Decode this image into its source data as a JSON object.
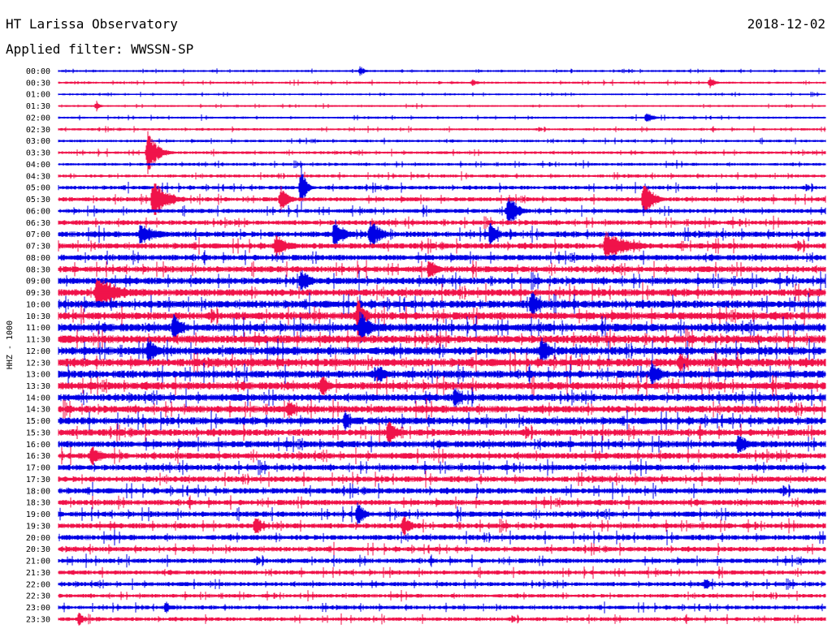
{
  "header": {
    "title": "HT Larissa Observatory",
    "date": "2018-12-02",
    "filter_prefix": "Applied filter:",
    "filter_name": "WWSSN-SP"
  },
  "colors": {
    "blue": "#0000e6",
    "red": "#f0134a",
    "text": "#000000",
    "background": "#ffffff"
  },
  "chart_data": {
    "type": "line",
    "ylabel": "HHZ - 1000",
    "xlabel": "",
    "time_labels": [
      "00:00",
      "00:30",
      "01:00",
      "01:30",
      "02:00",
      "02:30",
      "03:00",
      "03:30",
      "04:00",
      "04:30",
      "05:00",
      "05:30",
      "06:00",
      "06:30",
      "07:00",
      "07:30",
      "08:00",
      "08:30",
      "09:00",
      "09:30",
      "10:00",
      "10:30",
      "11:00",
      "11:30",
      "12:00",
      "12:30",
      "13:00",
      "13:30",
      "14:00",
      "14:30",
      "15:00",
      "15:30",
      "16:00",
      "16:30",
      "17:00",
      "17:30",
      "18:00",
      "18:30",
      "19:00",
      "19:30",
      "20:00",
      "20:30",
      "21:00",
      "21:30",
      "22:00",
      "22:30",
      "23:00",
      "23:30"
    ],
    "trace_colors": [
      "blue",
      "red"
    ],
    "noise_level": [
      0.9,
      0.9,
      0.8,
      0.8,
      0.9,
      1.0,
      1.1,
      1.2,
      1.2,
      1.3,
      1.6,
      1.8,
      1.8,
      2.0,
      2.4,
      2.4,
      2.4,
      2.6,
      2.8,
      3.0,
      3.2,
      3.2,
      3.4,
      3.4,
      3.4,
      3.4,
      3.2,
      3.2,
      3.0,
      3.0,
      3.0,
      2.8,
      2.8,
      2.6,
      2.4,
      2.4,
      2.4,
      2.3,
      2.3,
      2.2,
      2.2,
      2.0,
      2.0,
      1.8,
      1.8,
      1.6,
      1.6,
      1.6
    ],
    "events": [
      {
        "trace": "00:00",
        "time_min": 11.8,
        "amplitude": 7,
        "duration_min": 0.3
      },
      {
        "trace": "00:30",
        "time_min": 16.2,
        "amplitude": 5,
        "duration_min": 0.4
      },
      {
        "trace": "00:30",
        "time_min": 25.5,
        "amplitude": 8,
        "duration_min": 0.3
      },
      {
        "trace": "01:30",
        "time_min": 1.5,
        "amplitude": 7,
        "duration_min": 0.2
      },
      {
        "trace": "02:00",
        "time_min": 23.0,
        "amplitude": 7,
        "duration_min": 0.5
      },
      {
        "trace": "03:30",
        "time_min": 3.5,
        "amplitude": 28,
        "duration_min": 0.6
      },
      {
        "trace": "05:00",
        "time_min": 9.5,
        "amplitude": 30,
        "duration_min": 0.3
      },
      {
        "trace": "05:30",
        "time_min": 3.7,
        "amplitude": 25,
        "duration_min": 0.9
      },
      {
        "trace": "05:30",
        "time_min": 8.7,
        "amplitude": 18,
        "duration_min": 0.5
      },
      {
        "trace": "05:30",
        "time_min": 22.9,
        "amplitude": 30,
        "duration_min": 0.5
      },
      {
        "trace": "06:00",
        "time_min": 17.6,
        "amplitude": 22,
        "duration_min": 0.6
      },
      {
        "trace": "07:00",
        "time_min": 3.2,
        "amplitude": 14,
        "duration_min": 1.2
      },
      {
        "trace": "07:00",
        "time_min": 10.8,
        "amplitude": 22,
        "duration_min": 0.6
      },
      {
        "trace": "07:00",
        "time_min": 12.2,
        "amplitude": 20,
        "duration_min": 0.7
      },
      {
        "trace": "07:00",
        "time_min": 16.9,
        "amplitude": 18,
        "duration_min": 0.5
      },
      {
        "trace": "07:30",
        "time_min": 8.5,
        "amplitude": 16,
        "duration_min": 0.8
      },
      {
        "trace": "07:30",
        "time_min": 21.4,
        "amplitude": 18,
        "duration_min": 1.6
      },
      {
        "trace": "08:30",
        "time_min": 14.5,
        "amplitude": 16,
        "duration_min": 0.5
      },
      {
        "trace": "09:00",
        "time_min": 9.5,
        "amplitude": 16,
        "duration_min": 0.6
      },
      {
        "trace": "09:30",
        "time_min": 1.5,
        "amplitude": 22,
        "duration_min": 1.5
      },
      {
        "trace": "10:00",
        "time_min": 18.5,
        "amplitude": 20,
        "duration_min": 0.5
      },
      {
        "trace": "10:30",
        "time_min": 11.7,
        "amplitude": 26,
        "duration_min": 0.5
      },
      {
        "trace": "11:00",
        "time_min": 4.5,
        "amplitude": 18,
        "duration_min": 0.6
      },
      {
        "trace": "11:00",
        "time_min": 11.8,
        "amplitude": 22,
        "duration_min": 0.7
      },
      {
        "trace": "12:00",
        "time_min": 3.5,
        "amplitude": 18,
        "duration_min": 0.6
      },
      {
        "trace": "12:00",
        "time_min": 18.9,
        "amplitude": 20,
        "duration_min": 0.5
      },
      {
        "trace": "12:30",
        "time_min": 24.3,
        "amplitude": 14,
        "duration_min": 0.6
      },
      {
        "trace": "13:00",
        "time_min": 12.5,
        "amplitude": 16,
        "duration_min": 0.5
      },
      {
        "trace": "13:00",
        "time_min": 23.2,
        "amplitude": 18,
        "duration_min": 0.6
      },
      {
        "trace": "13:30",
        "time_min": 10.3,
        "amplitude": 16,
        "duration_min": 0.5
      },
      {
        "trace": "14:00",
        "time_min": 15.5,
        "amplitude": 14,
        "duration_min": 0.6
      },
      {
        "trace": "14:30",
        "time_min": 9.0,
        "amplitude": 14,
        "duration_min": 0.5
      },
      {
        "trace": "15:00",
        "time_min": 11.2,
        "amplitude": 14,
        "duration_min": 0.5
      },
      {
        "trace": "15:30",
        "time_min": 12.9,
        "amplitude": 16,
        "duration_min": 0.6
      },
      {
        "trace": "16:00",
        "time_min": 26.6,
        "amplitude": 16,
        "duration_min": 0.6
      },
      {
        "trace": "16:30",
        "time_min": 1.3,
        "amplitude": 16,
        "duration_min": 0.6
      },
      {
        "trace": "19:00",
        "time_min": 11.7,
        "amplitude": 16,
        "duration_min": 0.5
      },
      {
        "trace": "19:30",
        "time_min": 7.7,
        "amplitude": 14,
        "duration_min": 0.5
      },
      {
        "trace": "19:30",
        "time_min": 13.5,
        "amplitude": 14,
        "duration_min": 0.5
      },
      {
        "trace": "22:00",
        "time_min": 25.3,
        "amplitude": 8,
        "duration_min": 0.4
      },
      {
        "trace": "23:00",
        "time_min": 4.2,
        "amplitude": 8,
        "duration_min": 0.4
      },
      {
        "trace": "23:30",
        "time_min": 0.8,
        "amplitude": 9,
        "duration_min": 0.4
      }
    ],
    "time_axis_minutes": [
      0,
      30
    ],
    "grid": false,
    "legend": "none"
  }
}
